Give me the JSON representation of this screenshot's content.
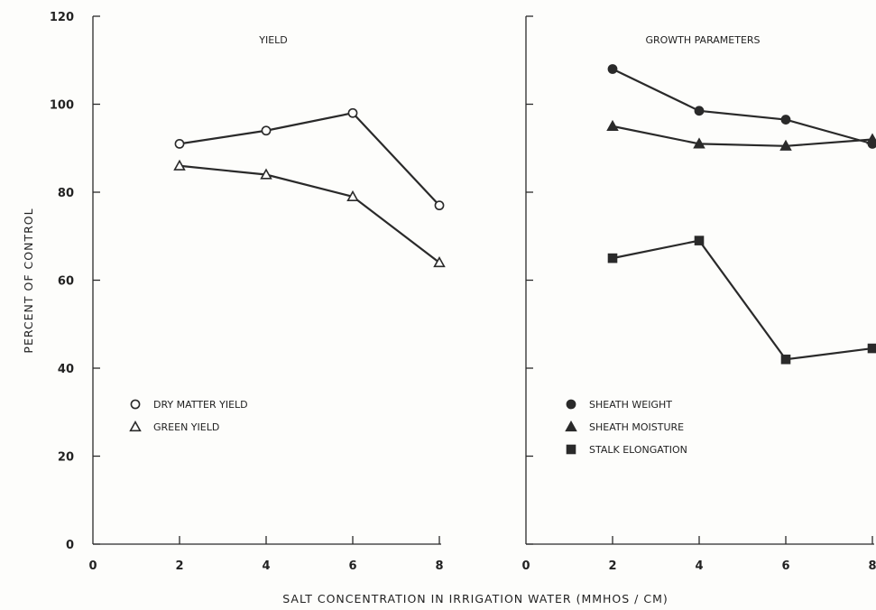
{
  "chart_data": [
    {
      "type": "line",
      "title": "YIELD",
      "xlabel": "SALT CONCENTRATION IN IRRIGATION WATER (MMHOS / CM)",
      "ylabel": "PERCENT OF CONTROL",
      "xlim": [
        0,
        8
      ],
      "ylim": [
        0,
        120
      ],
      "x_ticks": [
        0,
        2,
        4,
        6,
        8
      ],
      "y_ticks": [
        0,
        20,
        40,
        60,
        80,
        100,
        120
      ],
      "grid": false,
      "legend_position": "bottom-left",
      "series": [
        {
          "name": "DRY MATTER YIELD",
          "marker": "open-circle",
          "x": [
            2,
            4,
            6,
            8
          ],
          "values": [
            91,
            94,
            98,
            77
          ]
        },
        {
          "name": "GREEN YIELD",
          "marker": "open-triangle",
          "x": [
            2,
            4,
            6,
            8
          ],
          "values": [
            86,
            84,
            79,
            64
          ]
        }
      ]
    },
    {
      "type": "line",
      "title": "GROWTH PARAMETERS",
      "xlim": [
        0,
        8
      ],
      "ylim": [
        0,
        120
      ],
      "x_ticks": [
        0,
        2,
        4,
        6,
        8
      ],
      "grid": false,
      "legend_position": "bottom-left",
      "series": [
        {
          "name": "SHEATH WEIGHT",
          "marker": "filled-circle",
          "x": [
            2,
            4,
            6,
            8
          ],
          "values": [
            108,
            98.5,
            96.5,
            91
          ]
        },
        {
          "name": "SHEATH MOISTURE",
          "marker": "filled-triangle",
          "x": [
            2,
            4,
            6,
            8
          ],
          "values": [
            95,
            91,
            90.5,
            92
          ]
        },
        {
          "name": "STALK ELONGATION",
          "marker": "filled-square",
          "x": [
            2,
            4,
            6,
            8
          ],
          "values": [
            65,
            69,
            42,
            44.5
          ]
        }
      ]
    }
  ]
}
